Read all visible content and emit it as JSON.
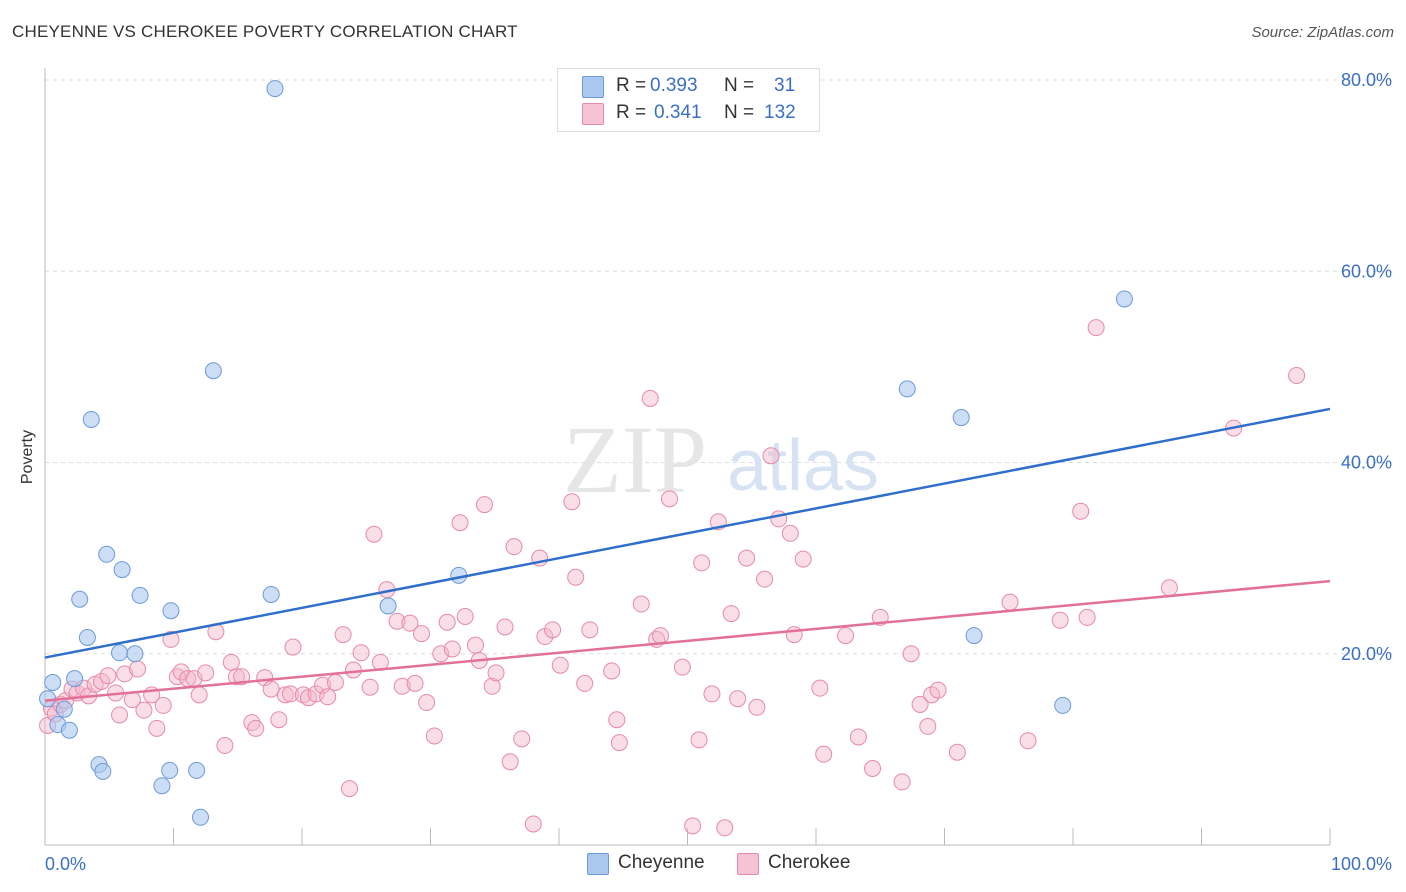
{
  "header": {
    "title": "CHEYENNE VS CHEROKEE POVERTY CORRELATION CHART",
    "source": "Source: ZipAtlas.com"
  },
  "watermark": {
    "zip": "ZIP",
    "atlas": "atlas"
  },
  "legend_top": {
    "rows": [
      {
        "r_label": "R =",
        "r_value": "0.393",
        "n_label": "N =",
        "n_value": "31"
      },
      {
        "r_label": "R =",
        "r_value": "0.341",
        "n_label": "N =",
        "n_value": "132"
      }
    ]
  },
  "legend_bottom": {
    "items": [
      "Cheyenne",
      "Cherokee"
    ]
  },
  "colors": {
    "cheyenne_fill": "#aac8ef",
    "cheyenne_stroke": "#6d9ad8",
    "cheyenne_line": "#2f6fcb",
    "cherokee_fill": "#f5b6c9",
    "cherokee_stroke": "#e68aa8",
    "cherokee_line": "#e2709a",
    "axis_label": "#3b6fc4",
    "grid": "#dddddd"
  },
  "chart_data": {
    "type": "scatter",
    "title": "CHEYENNE VS CHEROKEE POVERTY CORRELATION CHART",
    "xlabel": "",
    "ylabel": "Poverty",
    "xlim": [
      0,
      100
    ],
    "ylim": [
      0,
      80
    ],
    "x_tick_labels": [
      "0.0%",
      "100.0%"
    ],
    "y_ticks": [
      20,
      40,
      60,
      80
    ],
    "y_tick_labels": [
      "20.0%",
      "40.0%",
      "60.0%",
      "80.0%"
    ],
    "grid": true,
    "legend_placement": "top-center",
    "series": [
      {
        "name": "Cheyenne",
        "trend": [
          [
            0,
            19.6
          ],
          [
            100,
            45.6
          ]
        ],
        "points": [
          [
            0.2,
            15.3
          ],
          [
            0.6,
            17.0
          ],
          [
            1.0,
            12.6
          ],
          [
            1.5,
            14.2
          ],
          [
            1.9,
            12.0
          ],
          [
            2.3,
            17.4
          ],
          [
            2.7,
            25.7
          ],
          [
            3.3,
            21.7
          ],
          [
            3.6,
            44.5
          ],
          [
            4.2,
            8.4
          ],
          [
            4.5,
            7.7
          ],
          [
            4.8,
            30.4
          ],
          [
            5.8,
            20.1
          ],
          [
            6.0,
            28.8
          ],
          [
            7.0,
            20.0
          ],
          [
            7.4,
            26.1
          ],
          [
            9.1,
            6.2
          ],
          [
            9.7,
            7.8
          ],
          [
            9.8,
            24.5
          ],
          [
            11.8,
            7.8
          ],
          [
            12.1,
            2.9
          ],
          [
            13.1,
            49.6
          ],
          [
            17.6,
            26.2
          ],
          [
            17.9,
            79.1
          ],
          [
            26.7,
            25.0
          ],
          [
            32.2,
            28.2
          ],
          [
            67.1,
            47.7
          ],
          [
            71.3,
            44.7
          ],
          [
            72.3,
            21.9
          ],
          [
            79.2,
            14.6
          ],
          [
            84.0,
            57.1
          ]
        ]
      },
      {
        "name": "Cherokee",
        "trend": [
          [
            0,
            15.1
          ],
          [
            100,
            27.6
          ]
        ],
        "points": [
          [
            0.2,
            12.5
          ],
          [
            0.5,
            14.3
          ],
          [
            0.8,
            13.7
          ],
          [
            1.2,
            14.7
          ],
          [
            1.6,
            15.1
          ],
          [
            2.1,
            16.3
          ],
          [
            2.5,
            15.9
          ],
          [
            3.0,
            16.4
          ],
          [
            3.4,
            15.6
          ],
          [
            3.9,
            16.8
          ],
          [
            4.4,
            17.1
          ],
          [
            4.9,
            17.7
          ],
          [
            5.5,
            15.9
          ],
          [
            5.8,
            13.6
          ],
          [
            6.2,
            17.9
          ],
          [
            6.8,
            15.2
          ],
          [
            7.2,
            18.4
          ],
          [
            7.7,
            14.1
          ],
          [
            8.3,
            15.7
          ],
          [
            8.7,
            12.2
          ],
          [
            9.2,
            14.6
          ],
          [
            9.8,
            21.5
          ],
          [
            10.3,
            17.6
          ],
          [
            10.6,
            18.1
          ],
          [
            11.1,
            17.4
          ],
          [
            11.6,
            17.4
          ],
          [
            12.0,
            15.7
          ],
          [
            12.5,
            18.0
          ],
          [
            13.3,
            22.3
          ],
          [
            14.0,
            10.4
          ],
          [
            14.5,
            19.1
          ],
          [
            14.9,
            17.6
          ],
          [
            15.3,
            17.6
          ],
          [
            16.1,
            12.8
          ],
          [
            16.4,
            12.2
          ],
          [
            17.1,
            17.5
          ],
          [
            17.6,
            16.3
          ],
          [
            18.2,
            13.1
          ],
          [
            18.7,
            15.7
          ],
          [
            19.1,
            15.8
          ],
          [
            19.3,
            20.7
          ],
          [
            20.1,
            15.7
          ],
          [
            20.5,
            15.4
          ],
          [
            21.1,
            15.8
          ],
          [
            21.6,
            16.7
          ],
          [
            22.0,
            15.5
          ],
          [
            22.6,
            17.0
          ],
          [
            23.2,
            22.0
          ],
          [
            23.7,
            5.9
          ],
          [
            24.0,
            18.3
          ],
          [
            24.6,
            20.1
          ],
          [
            25.3,
            16.5
          ],
          [
            25.6,
            32.5
          ],
          [
            26.1,
            19.1
          ],
          [
            26.6,
            26.7
          ],
          [
            27.4,
            23.4
          ],
          [
            27.8,
            16.6
          ],
          [
            28.4,
            23.2
          ],
          [
            28.8,
            16.9
          ],
          [
            29.3,
            22.1
          ],
          [
            29.7,
            14.9
          ],
          [
            30.3,
            11.4
          ],
          [
            30.8,
            20.0
          ],
          [
            31.3,
            23.3
          ],
          [
            31.7,
            20.5
          ],
          [
            32.3,
            33.7
          ],
          [
            32.7,
            23.9
          ],
          [
            33.5,
            20.9
          ],
          [
            33.8,
            19.3
          ],
          [
            34.2,
            35.6
          ],
          [
            34.8,
            16.6
          ],
          [
            35.1,
            18.0
          ],
          [
            35.8,
            22.8
          ],
          [
            36.2,
            8.7
          ],
          [
            36.5,
            31.2
          ],
          [
            37.1,
            11.1
          ],
          [
            38.0,
            2.2
          ],
          [
            38.5,
            30.0
          ],
          [
            38.9,
            21.8
          ],
          [
            39.5,
            22.5
          ],
          [
            40.1,
            18.8
          ],
          [
            41.0,
            35.9
          ],
          [
            41.3,
            28.0
          ],
          [
            42.0,
            16.9
          ],
          [
            42.4,
            22.5
          ],
          [
            44.1,
            18.2
          ],
          [
            44.5,
            13.1
          ],
          [
            44.7,
            10.7
          ],
          [
            46.4,
            25.2
          ],
          [
            47.1,
            46.7
          ],
          [
            47.6,
            21.5
          ],
          [
            47.9,
            21.9
          ],
          [
            48.6,
            36.2
          ],
          [
            49.6,
            18.6
          ],
          [
            50.4,
            2.0
          ],
          [
            50.9,
            11.0
          ],
          [
            51.1,
            29.5
          ],
          [
            51.9,
            15.8
          ],
          [
            52.4,
            33.8
          ],
          [
            52.9,
            1.8
          ],
          [
            53.4,
            24.2
          ],
          [
            53.9,
            15.3
          ],
          [
            54.6,
            30.0
          ],
          [
            55.4,
            14.4
          ],
          [
            56.0,
            27.8
          ],
          [
            56.5,
            40.7
          ],
          [
            57.1,
            34.1
          ],
          [
            58.0,
            32.6
          ],
          [
            58.3,
            22.0
          ],
          [
            59.0,
            29.9
          ],
          [
            60.3,
            16.4
          ],
          [
            60.6,
            9.5
          ],
          [
            62.3,
            21.9
          ],
          [
            63.3,
            11.3
          ],
          [
            64.4,
            8.0
          ],
          [
            65.0,
            23.8
          ],
          [
            66.7,
            6.6
          ],
          [
            67.4,
            20.0
          ],
          [
            68.1,
            14.7
          ],
          [
            68.7,
            12.4
          ],
          [
            69.0,
            15.7
          ],
          [
            69.5,
            16.2
          ],
          [
            71.0,
            9.7
          ],
          [
            75.1,
            25.4
          ],
          [
            76.5,
            10.9
          ],
          [
            79.0,
            23.5
          ],
          [
            80.6,
            34.9
          ],
          [
            81.1,
            23.8
          ],
          [
            81.8,
            54.1
          ],
          [
            87.5,
            26.9
          ],
          [
            92.5,
            43.6
          ],
          [
            97.4,
            49.1
          ]
        ]
      }
    ]
  }
}
